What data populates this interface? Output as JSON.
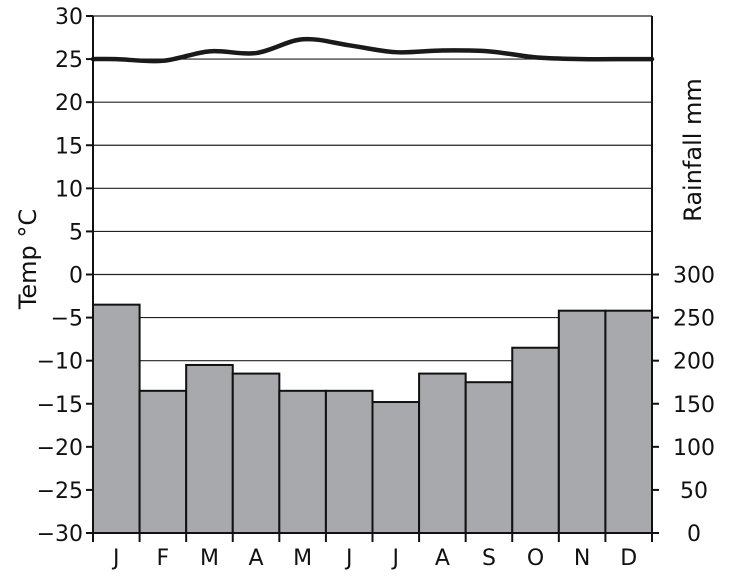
{
  "chart_data": {
    "type": "bar",
    "categories": [
      "J",
      "F",
      "M",
      "A",
      "M",
      "J",
      "J",
      "A",
      "S",
      "O",
      "N",
      "D"
    ],
    "series": [
      {
        "type": "bar",
        "axis": "right",
        "values": [
          265,
          165,
          195,
          185,
          165,
          165,
          152,
          185,
          175,
          215,
          258,
          258
        ]
      },
      {
        "type": "line",
        "axis": "left",
        "values": [
          25,
          24.8,
          25.9,
          25.7,
          27.3,
          26.6,
          25.8,
          26.0,
          25.9,
          25.2,
          25.0,
          25.0
        ]
      }
    ],
    "ylabel_left": "Temp °C",
    "ylabel_right": "Rainfall mm",
    "ylim_left": [
      -30,
      30
    ],
    "left_ticks": [
      "30",
      "25",
      "20",
      "15",
      "10",
      "5",
      "0",
      "−5",
      "−10",
      "−15",
      "−20",
      "−25",
      "−30"
    ],
    "ylim_right": [
      0,
      300
    ],
    "right_ticks": [
      "300",
      "250",
      "200",
      "150",
      "100",
      "50",
      "0"
    ],
    "grid": true,
    "colors": {
      "bar_fill": "#a7a9ac",
      "line": "#1a1a1a",
      "grid": "#222222"
    }
  }
}
